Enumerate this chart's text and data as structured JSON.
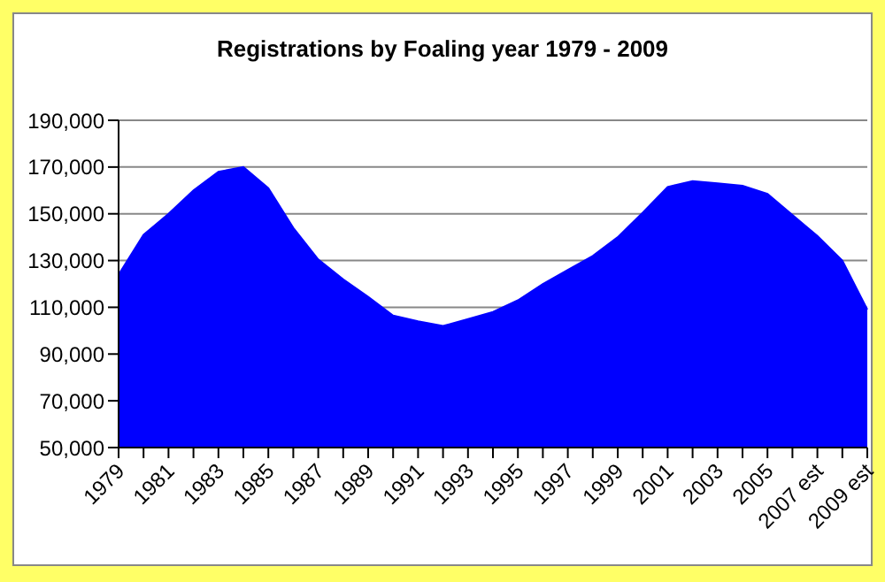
{
  "chart_data": {
    "type": "area",
    "title": "Registrations by Foaling year 1979 - 2009",
    "categories": [
      "1979",
      null,
      "1981",
      null,
      "1983",
      null,
      "1985",
      null,
      "1987",
      null,
      "1989",
      null,
      "1991",
      null,
      "1993",
      null,
      "1995",
      null,
      "1997",
      null,
      "1999",
      null,
      "2001",
      null,
      "2003",
      null,
      "2005",
      null,
      "2007 est",
      null,
      "2009 est"
    ],
    "series": [
      {
        "color": "#0000ff",
        "values": [
          124000,
          141000,
          150000,
          160000,
          168000,
          170000,
          161000,
          144000,
          130500,
          122000,
          114500,
          106500,
          104000,
          102000,
          105000,
          108000,
          113000,
          120000,
          126000,
          132000,
          140000,
          150500,
          161500,
          164000,
          163000,
          162000,
          158500,
          149500,
          140500,
          130000,
          109000
        ]
      }
    ],
    "ylim": [
      50000,
      190000
    ],
    "yticks": [
      {
        "value": 50000,
        "label": "50,000"
      },
      {
        "value": 70000,
        "label": "70,000"
      },
      {
        "value": 90000,
        "label": "90,000"
      },
      {
        "value": 110000,
        "label": "110,000"
      },
      {
        "value": 130000,
        "label": "130,000"
      },
      {
        "value": 150000,
        "label": "150,000"
      },
      {
        "value": 170000,
        "label": "170,000"
      },
      {
        "value": 190000,
        "label": "190,000"
      }
    ],
    "grid": "y"
  }
}
